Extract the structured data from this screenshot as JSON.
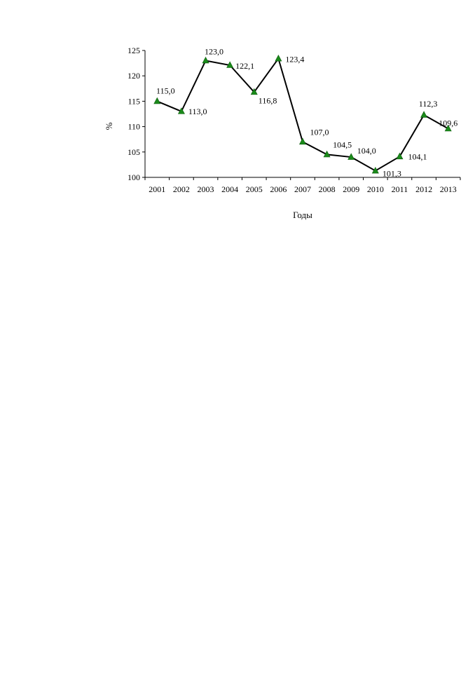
{
  "chart_data": {
    "type": "line",
    "title": "",
    "xlabel": "Годы",
    "ylabel": "%",
    "ylim": [
      100,
      125
    ],
    "yticks": [
      "100",
      "105",
      "110",
      "115",
      "120",
      "125"
    ],
    "grid": false,
    "legend": "none",
    "categories": [
      "2001",
      "2002",
      "2003",
      "2004",
      "2005",
      "2006",
      "2007",
      "2008",
      "2009",
      "2010",
      "2011",
      "2012",
      "2013"
    ],
    "series": [
      {
        "values": [
          115.0,
          113.0,
          123.0,
          122.1,
          116.8,
          123.4,
          107.0,
          104.5,
          104.0,
          101.3,
          104.1,
          112.3,
          109.6
        ],
        "labels": [
          "115,0",
          "113,0",
          "123,0",
          "122,1",
          "116,8",
          "123,4",
          "107,0",
          "104,5",
          "104,0",
          "101,3",
          "104,1",
          "112,3",
          "109,6"
        ],
        "color": "#000000",
        "marker": "triangle",
        "marker_color": "#1a8a1a"
      }
    ]
  }
}
